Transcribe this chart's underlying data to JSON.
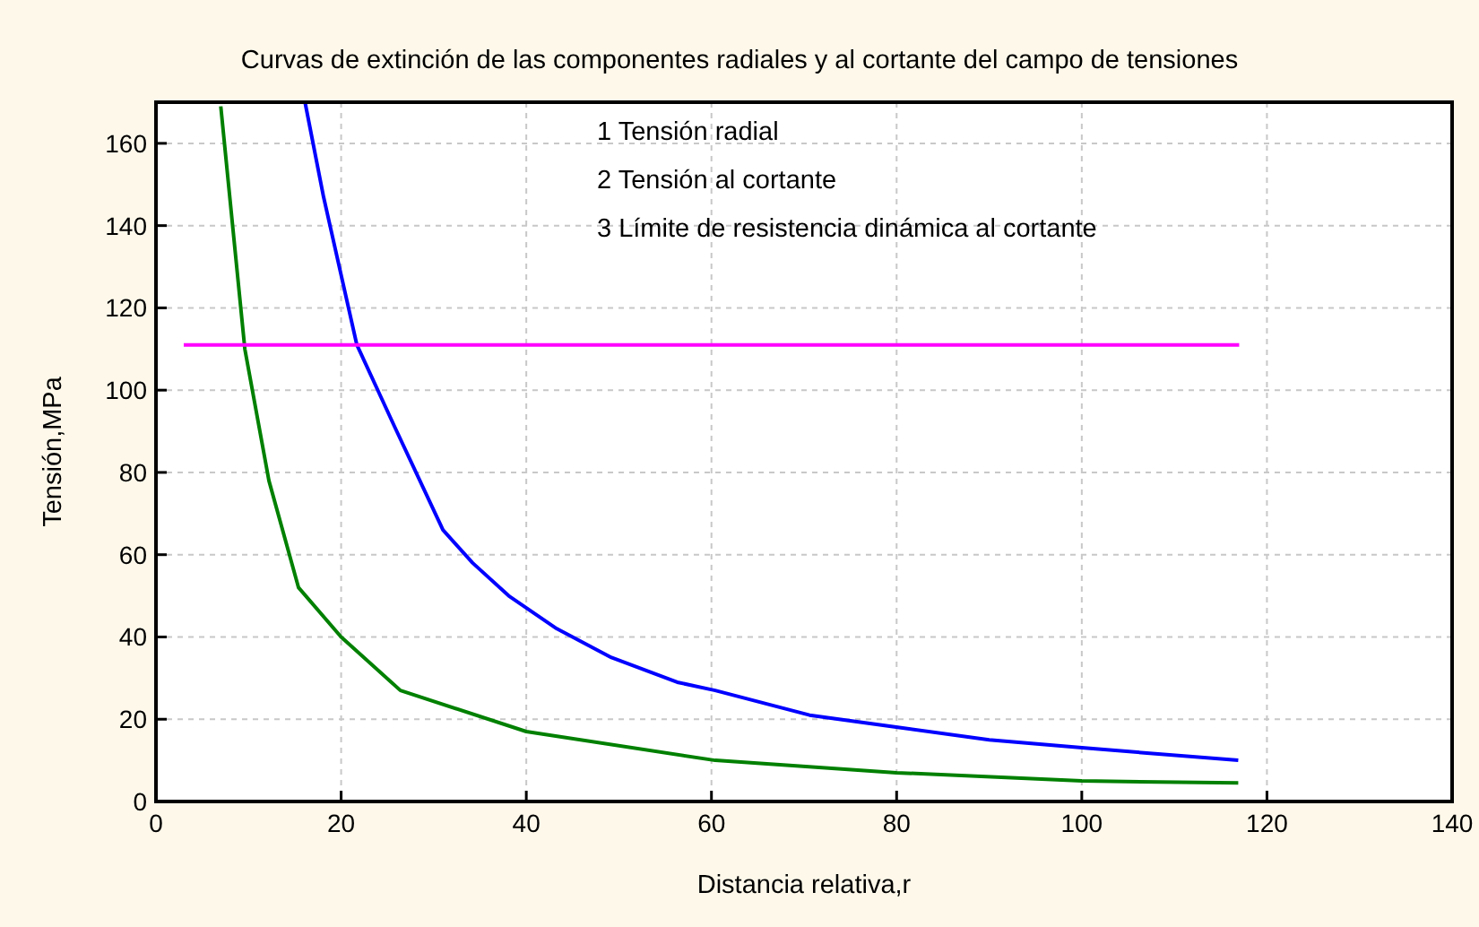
{
  "chart_data": {
    "type": "line",
    "title": "Curvas de extinción de las componentes radiales y al cortante del campo de tensiones",
    "xlabel": "Distancia relativa,r",
    "ylabel": "Tensión,MPa",
    "xlim": [
      0,
      140
    ],
    "xticks": [
      0,
      20,
      40,
      60,
      80,
      100,
      120,
      140
    ],
    "ylim": [
      0,
      170
    ],
    "yticks": [
      0,
      20,
      40,
      60,
      80,
      100,
      120,
      140,
      160
    ],
    "grid": true,
    "marker": "none",
    "line_style": "solid",
    "annotations": [
      "1  Tensión radial",
      "2  Tensión al cortante",
      "3  Límite de resistencia dinámica al cortante"
    ],
    "series": [
      {
        "color": "#0000ff",
        "x": [
          16.1,
          18.1,
          21.7,
          25.8,
          31.0,
          34.2,
          38.1,
          43.3,
          49.2,
          56.3,
          60.4,
          70.6,
          80.3,
          90.0,
          100.3,
          116.9
        ],
        "values": [
          170,
          147,
          111,
          91,
          66,
          58,
          50,
          42,
          35,
          29,
          27,
          21,
          18,
          15,
          13,
          10
        ]
      },
      {
        "color": "#008000",
        "x": [
          7.0,
          9.6,
          12.2,
          15.4,
          20,
          26.4,
          40,
          60.4,
          80,
          100,
          116.9
        ],
        "values": [
          169,
          110,
          78,
          52,
          40,
          27,
          17,
          10,
          7,
          5,
          4.5
        ]
      },
      {
        "color": "#ff00ff",
        "x": [
          3,
          117
        ],
        "values": [
          111,
          111
        ]
      }
    ]
  }
}
